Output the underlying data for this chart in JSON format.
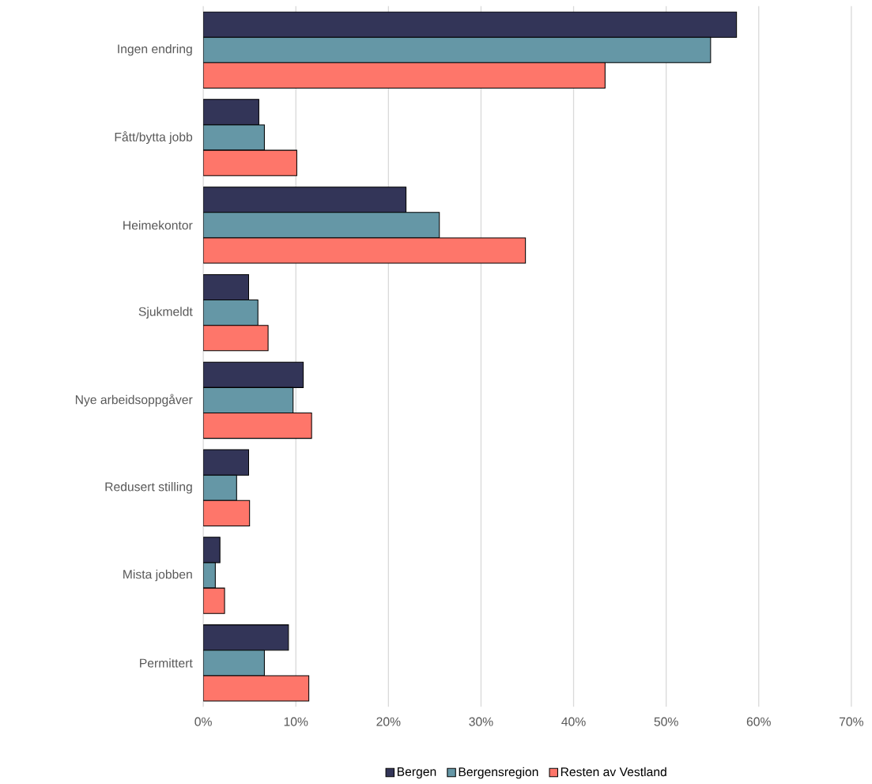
{
  "chart_data": {
    "type": "bar",
    "orientation": "horizontal",
    "categories": [
      "Ingen endring",
      "Fått/bytta jobb",
      "Heimekontor",
      "Sjukmeldt",
      "Nye arbeidsoppgåver",
      "Redusert stilling",
      "Mista jobben",
      "Permittert"
    ],
    "series": [
      {
        "name": "Bergen",
        "color": "#333558",
        "values": [
          57.6,
          6.0,
          21.9,
          4.9,
          10.8,
          4.9,
          1.8,
          9.2
        ]
      },
      {
        "name": "Bergensregion",
        "color": "#6597a6",
        "values": [
          54.8,
          6.6,
          25.5,
          5.9,
          9.7,
          3.6,
          1.3,
          6.6
        ]
      },
      {
        "name": "Resten av Vestland",
        "color": "#fe766a",
        "values": [
          43.4,
          10.1,
          34.8,
          7.0,
          11.7,
          5.0,
          2.3,
          11.4
        ]
      }
    ],
    "xlim": [
      0,
      70
    ],
    "xticks": [
      {
        "value": 0,
        "label": "0%"
      },
      {
        "value": 10,
        "label": "10%"
      },
      {
        "value": 20,
        "label": "20%"
      },
      {
        "value": 30,
        "label": "30%"
      },
      {
        "value": 40,
        "label": "40%"
      },
      {
        "value": 50,
        "label": "50%"
      },
      {
        "value": 60,
        "label": "60%"
      },
      {
        "value": 70,
        "label": "70%"
      }
    ],
    "grid": "x",
    "legend": "bottom"
  }
}
